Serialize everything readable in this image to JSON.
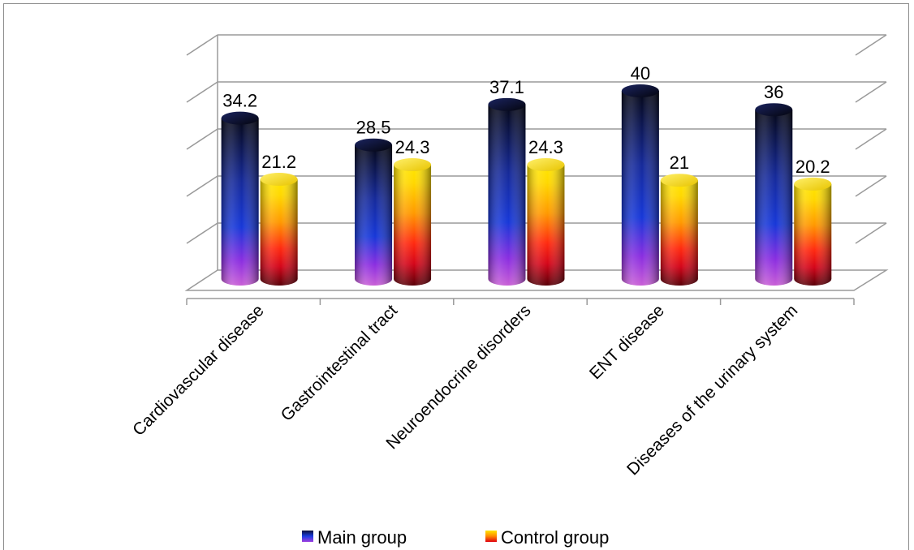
{
  "chart_data": {
    "type": "bar",
    "style": "3d-cylinder",
    "categories": [
      "Cardiovascular disease",
      "Gastrointestinal tract",
      "Neuroendocrine disorders",
      "ENT disease",
      "Diseases of the urinary system"
    ],
    "series": [
      {
        "name": "Main group",
        "values": [
          34.2,
          28.5,
          37.1,
          40,
          36
        ],
        "color": "#1a2aa8"
      },
      {
        "name": "Control group",
        "values": [
          21.2,
          24.3,
          24.3,
          21,
          20.2
        ],
        "color": "#f5a300"
      }
    ],
    "ylim": [
      0,
      50
    ],
    "grid": true,
    "y_tick_labels_visible": false,
    "legend": "bottom-center"
  }
}
